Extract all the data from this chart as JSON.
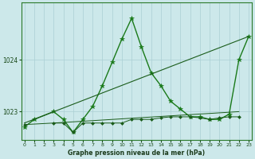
{
  "title": "Graphe pression niveau de la mer (hPa)",
  "background_color": "#cce8ea",
  "plot_background": "#cce8ea",
  "grid_color": "#aacfd4",
  "x_ticks": [
    0,
    1,
    2,
    3,
    4,
    5,
    6,
    7,
    8,
    9,
    10,
    11,
    12,
    13,
    14,
    15,
    16,
    17,
    18,
    19,
    20,
    21,
    22,
    23
  ],
  "y_ticks": [
    1023,
    1024
  ],
  "ylim": [
    1022.45,
    1025.1
  ],
  "xlim": [
    -0.3,
    23.3
  ],
  "series": [
    {
      "x": [
        0,
        1,
        3,
        4,
        5,
        6,
        7,
        8,
        9,
        10,
        11,
        12,
        13,
        14,
        15,
        16,
        17,
        18,
        19,
        20,
        21,
        22,
        23
      ],
      "y": [
        1022.7,
        1022.85,
        1023.0,
        1022.85,
        1022.6,
        1022.85,
        1023.1,
        1023.5,
        1023.95,
        1024.4,
        1024.8,
        1024.25,
        1023.75,
        1023.5,
        1023.2,
        1023.05,
        1022.9,
        1022.9,
        1022.85,
        1022.85,
        1022.95,
        1024.0,
        1024.45
      ],
      "marker": "*",
      "markersize": 4,
      "linewidth": 1.0,
      "color": "#1a7a1a"
    },
    {
      "x": [
        0,
        3,
        4,
        5,
        6,
        7,
        8,
        9,
        10,
        11,
        12,
        13,
        14,
        15,
        16,
        17,
        18,
        19,
        20,
        21,
        22
      ],
      "y": [
        1022.75,
        1022.78,
        1022.78,
        1022.6,
        1022.78,
        1022.78,
        1022.78,
        1022.78,
        1022.78,
        1022.85,
        1022.85,
        1022.85,
        1022.88,
        1022.9,
        1022.9,
        1022.9,
        1022.88,
        1022.85,
        1022.88,
        1022.9,
        1022.9
      ],
      "marker": "D",
      "markersize": 2,
      "linewidth": 0.7,
      "color": "#1a5c1a"
    },
    {
      "x": [
        0,
        23
      ],
      "y": [
        1022.78,
        1024.45
      ],
      "marker": null,
      "markersize": 0,
      "linewidth": 0.8,
      "color": "#1a5c1a"
    },
    {
      "x": [
        3,
        22
      ],
      "y": [
        1022.78,
        1023.0
      ],
      "marker": null,
      "markersize": 0,
      "linewidth": 0.7,
      "color": "#1a5c1a"
    }
  ]
}
